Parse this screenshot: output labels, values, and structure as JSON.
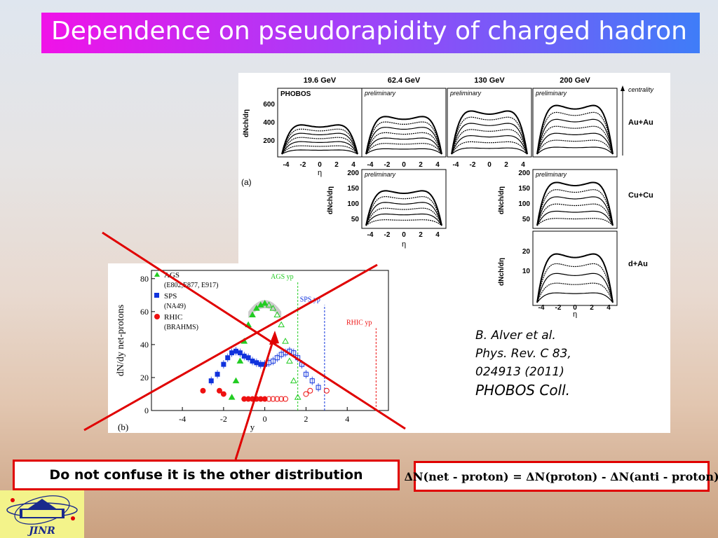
{
  "title": "Dependence on pseudorapidity of charged hadron",
  "phobos_figure": {
    "energies": [
      "19.6 GeV",
      "62.4 GeV",
      "130 GeV",
      "200 GeV"
    ],
    "experiment_label": "PHOBOS",
    "preliminary_label": "preliminary",
    "centrality_label": "centrality",
    "systems": [
      "Au+Au",
      "Cu+Cu",
      "d+Au"
    ],
    "panel_label": "(a)",
    "ylabel": "dNch/dη",
    "xlabel": "η",
    "x_ticks": [
      "-4",
      "-2",
      "0",
      "2",
      "4"
    ],
    "y_ticks_auau": [
      "600",
      "400",
      "200"
    ],
    "y_ticks_cucu": [
      "200",
      "150",
      "100",
      "50"
    ],
    "y_ticks_dau": [
      "20",
      "10"
    ]
  },
  "chart_data": {
    "type": "scatter",
    "panel_label": "(b)",
    "ylabel": "dN/dy net-protons",
    "xlabel": "y",
    "xlim": [
      -5.5,
      6
    ],
    "ylim": [
      0,
      85
    ],
    "x_ticks": [
      -4,
      -2,
      0,
      2,
      4
    ],
    "y_ticks": [
      0,
      20,
      40,
      60,
      80
    ],
    "legend": [
      {
        "name": "AGS",
        "detail": "(E802,E877, E917)",
        "color": "#22cc22"
      },
      {
        "name": "SPS",
        "detail": "(NA49)",
        "color": "#1133dd"
      },
      {
        "name": "RHIC",
        "detail": "(BRAHMS)",
        "color": "#ee1111"
      }
    ],
    "beam_rapidity_labels": [
      {
        "label": "AGS yp",
        "x": 1.6,
        "color": "#22cc22"
      },
      {
        "label": "SPS yp",
        "x": 2.9,
        "color": "#1133dd"
      },
      {
        "label": "RHIC yp",
        "x": 5.4,
        "color": "#ee1111"
      }
    ],
    "series": [
      {
        "name": "AGS",
        "color": "#22cc22",
        "x": [
          -1.6,
          -1.4,
          -1.2,
          -1.0,
          -0.8,
          -0.6,
          -0.4,
          -0.2,
          0,
          0.2,
          0.4,
          0.6,
          0.8,
          1.0,
          1.2,
          1.4,
          1.6
        ],
        "y": [
          8,
          18,
          30,
          42,
          52,
          58,
          62,
          64,
          65,
          64,
          62,
          58,
          52,
          42,
          30,
          18,
          8
        ]
      },
      {
        "name": "SPS",
        "color": "#1133dd",
        "x": [
          -2.6,
          -2.3,
          -2.0,
          -1.8,
          -1.6,
          -1.4,
          -1.2,
          -1.0,
          -0.8,
          -0.6,
          -0.4,
          -0.2,
          0,
          0.2,
          0.4,
          0.6,
          0.8,
          1.0,
          1.2,
          1.4,
          1.6,
          1.8,
          2.0,
          2.3,
          2.6
        ],
        "y": [
          18,
          22,
          28,
          32,
          35,
          36,
          35,
          33,
          32,
          30,
          29,
          28,
          28,
          29,
          30,
          32,
          34,
          35,
          36,
          35,
          32,
          28,
          22,
          18,
          14
        ]
      },
      {
        "name": "RHIC",
        "color": "#ee1111",
        "x": [
          -3.0,
          -2.2,
          -2.0,
          -1.0,
          -0.8,
          -0.6,
          -0.4,
          -0.2,
          0,
          0.2,
          0.4,
          0.6,
          0.8,
          1.0,
          2.0,
          2.2,
          3.0
        ],
        "y": [
          12,
          12,
          10,
          7,
          7,
          7,
          7,
          7,
          7,
          7,
          7,
          7,
          7,
          7,
          10,
          12,
          12
        ]
      }
    ]
  },
  "citation": {
    "authors": "B. Alver et al.",
    "journal": "Phys. Rev. C 83,",
    "ref": "024913 (2011)",
    "collab": "PHOBOS Coll."
  },
  "warning": "Do not confuse it is the other distribution",
  "formula": "ΔN(net - proton) = ΔN(proton) - ΔN(anti - proton)",
  "logo": {
    "text": "JINR"
  },
  "colors": {
    "accent": "#e00000",
    "title_start": "#f012e8",
    "title_end": "#3f7df8"
  }
}
